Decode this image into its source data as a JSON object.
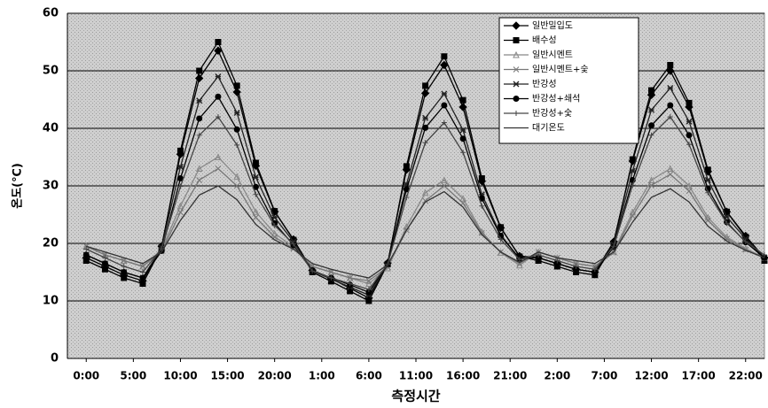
{
  "chart_data": {
    "type": "line",
    "xlabel": "측정시간",
    "ylabel": "온도(℃)",
    "x": [
      0,
      2,
      4,
      6,
      8,
      10,
      12,
      14,
      16,
      18,
      20,
      22,
      24,
      26,
      28,
      30,
      32,
      34,
      36,
      38,
      40,
      42,
      44,
      46,
      48,
      50,
      52,
      54,
      56,
      58,
      60,
      62,
      64,
      66,
      68,
      70,
      72
    ],
    "xlim": [
      -2,
      72
    ],
    "xticks": [
      {
        "value": 0,
        "label": "0:00"
      },
      {
        "value": 5,
        "label": "5:00"
      },
      {
        "value": 10,
        "label": "10:00"
      },
      {
        "value": 15,
        "label": "15:00"
      },
      {
        "value": 20,
        "label": "20:00"
      },
      {
        "value": 25,
        "label": "1:00"
      },
      {
        "value": 30,
        "label": "6:00"
      },
      {
        "value": 35,
        "label": "11:00"
      },
      {
        "value": 40,
        "label": "16:00"
      },
      {
        "value": 45,
        "label": "21:00"
      },
      {
        "value": 50,
        "label": "2:00"
      },
      {
        "value": 55,
        "label": "7:00"
      },
      {
        "value": 60,
        "label": "12:00"
      },
      {
        "value": 65,
        "label": "17:00"
      },
      {
        "value": 70,
        "label": "22:00"
      }
    ],
    "ylim": [
      0,
      60
    ],
    "yticks": [
      0,
      10,
      20,
      30,
      40,
      50,
      60
    ],
    "grid": true,
    "series": [
      {
        "name": "일반밀입도",
        "color": "#000000",
        "marker": "diamond",
        "values": [
          17.5,
          16,
          14.5,
          13.5,
          19.5,
          35.5,
          48.7,
          53.5,
          46.3,
          33.5,
          25.5,
          20.7,
          15.3,
          13.9,
          12.2,
          10.5,
          16.6,
          32.8,
          46.1,
          51,
          43.7,
          30.8,
          22.7,
          17.8,
          17.5,
          16.5,
          15.5,
          15,
          20.3,
          34.3,
          45.8,
          50,
          43.7,
          32.5,
          25.5,
          21.3,
          17.5
        ]
      },
      {
        "name": "배수성",
        "color": "#000000",
        "marker": "square",
        "values": [
          17,
          15.5,
          14,
          13,
          19.3,
          36.1,
          50,
          55,
          47.4,
          34,
          25.6,
          20.6,
          15,
          13.4,
          11.7,
          10,
          16.4,
          33.4,
          47.4,
          52.5,
          44.9,
          31.3,
          22.8,
          17.7,
          17,
          16,
          15,
          14.5,
          20,
          34.6,
          46.6,
          51,
          44.4,
          32.8,
          25.5,
          21.1,
          17
        ]
      },
      {
        "name": "일반시멘트",
        "color": "#888888",
        "marker": "triangle",
        "values": [
          19.5,
          18,
          17,
          16,
          18.9,
          26.5,
          33,
          35,
          31.6,
          25.5,
          21.7,
          19.4,
          16,
          15,
          14,
          13,
          15.7,
          22.9,
          28.8,
          31,
          27.8,
          22,
          18.4,
          16.2,
          18.5,
          17.5,
          16.5,
          16,
          18.6,
          25.4,
          31,
          33,
          30,
          24.5,
          21.1,
          19.1,
          17.5
        ]
      },
      {
        "name": "일반시멘트+숯",
        "color": "#777777",
        "marker": "x",
        "values": [
          19.5,
          18,
          17,
          16,
          18.6,
          25.4,
          31,
          33,
          30,
          24.5,
          21.1,
          19.1,
          16,
          15,
          14,
          13.5,
          15.9,
          22.3,
          27.4,
          30,
          27,
          21.8,
          18.5,
          16.5,
          18.5,
          17.5,
          16.5,
          16,
          18.4,
          24.8,
          30.1,
          32,
          29.1,
          24,
          20.8,
          18.9,
          17.5
        ]
      },
      {
        "name": "반강성",
        "color": "#222222",
        "marker": "star",
        "values": [
          18,
          16.5,
          15,
          14,
          19.3,
          33.3,
          44.8,
          49,
          42.7,
          31.5,
          24.5,
          20.3,
          15.2,
          13.8,
          12.4,
          11,
          16.3,
          30.3,
          41.8,
          46,
          39.7,
          28.5,
          21.5,
          17.3,
          17.5,
          16.5,
          15.5,
          15,
          19.8,
          32.6,
          43.2,
          47,
          41.2,
          31,
          24.6,
          20.8,
          17.5
        ]
      },
      {
        "name": "반강성+쇄석",
        "color": "#000000",
        "marker": "circle",
        "values": [
          18,
          16.5,
          15,
          14,
          18.7,
          31.3,
          41.7,
          45.5,
          39.8,
          29.8,
          23.5,
          19.7,
          15.3,
          14,
          12.8,
          11.5,
          16.4,
          29.4,
          40.1,
          44,
          38.2,
          27.8,
          21.3,
          17.4,
          17.5,
          16.5,
          15.5,
          15,
          19.4,
          31,
          40.5,
          44,
          38.8,
          29.5,
          23.7,
          20.2,
          17.5
        ]
      },
      {
        "name": "반강성+숯",
        "color": "#444444",
        "marker": "plus",
        "values": [
          19,
          17.5,
          16,
          15,
          19.1,
          29.9,
          38.8,
          42,
          37.1,
          28.5,
          23.1,
          19.9,
          15.2,
          14,
          13,
          12,
          16.4,
          28,
          37.5,
          41,
          35.8,
          26.5,
          20.7,
          17.2,
          18,
          17,
          16,
          15.5,
          19.5,
          30.1,
          38.8,
          42,
          37.2,
          28.8,
          23.5,
          20.3,
          18
        ]
      },
      {
        "name": "대기온도",
        "color": "#333333",
        "marker": "none",
        "values": [
          19.5,
          18.5,
          17.5,
          16.5,
          18.5,
          24,
          28.4,
          30,
          27.6,
          23.3,
          20.6,
          19,
          16.5,
          15.5,
          14.7,
          14,
          16.3,
          22.3,
          27.2,
          29,
          26.3,
          21.5,
          18.5,
          16.7,
          18.5,
          17.5,
          17,
          16.5,
          18.5,
          23.7,
          28,
          29.5,
          27.2,
          23,
          20.4,
          18.8,
          17.5
        ]
      }
    ]
  }
}
